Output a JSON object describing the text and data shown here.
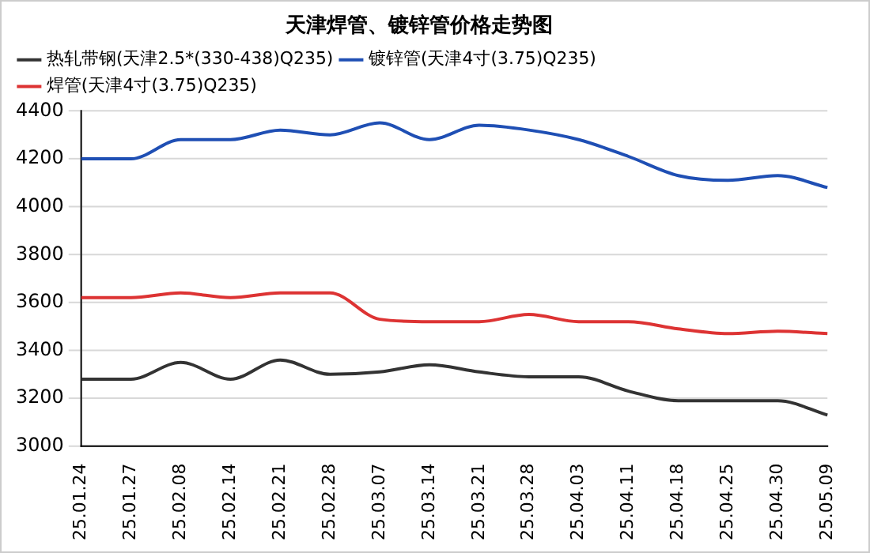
{
  "chart_data": {
    "type": "line",
    "title": "天津焊管、镀锌管价格走势图",
    "categories": [
      "25.01.24",
      "25.01.27",
      "25.02.08",
      "25.02.14",
      "25.02.21",
      "25.02.28",
      "25.03.07",
      "25.03.14",
      "25.03.21",
      "25.03.28",
      "25.04.03",
      "25.04.11",
      "25.04.18",
      "25.04.25",
      "25.04.30",
      "25.05.09"
    ],
    "series": [
      {
        "name": "热轧带钢(天津2.5*(330-438)Q235)",
        "color": "#333333",
        "values": [
          3280,
          3280,
          3350,
          3280,
          3360,
          3300,
          3310,
          3340,
          3310,
          3290,
          3290,
          3230,
          3190,
          3190,
          3190,
          3130
        ]
      },
      {
        "name": "镀锌管(天津4寸(3.75)Q235)",
        "color": "#1f4fb4",
        "values": [
          4200,
          4200,
          4280,
          4280,
          4320,
          4300,
          4350,
          4280,
          4340,
          4320,
          4280,
          4210,
          4130,
          4110,
          4130,
          4080
        ]
      },
      {
        "name": "焊管(天津4寸(3.75)Q235)",
        "color": "#dd3333",
        "values": [
          3620,
          3620,
          3640,
          3620,
          3640,
          3640,
          3530,
          3520,
          3520,
          3550,
          3520,
          3520,
          3490,
          3470,
          3480,
          3470
        ]
      }
    ],
    "ylim": [
      3000,
      4400
    ],
    "yticks": [
      3000,
      3200,
      3400,
      3600,
      3800,
      4000,
      4200,
      4400
    ],
    "grid": "y",
    "legend": "top",
    "marker": "none",
    "line_style": "solid"
  }
}
